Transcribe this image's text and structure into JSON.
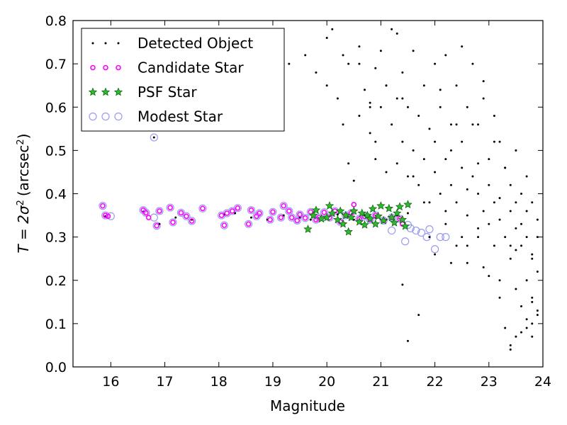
{
  "chart_data": {
    "type": "scatter",
    "xlabel": "Magnitude",
    "ylabel_main": "T = 2σ",
    "ylabel_sup": "2",
    "ylabel_unit": "(arcsec",
    "ylabel_unit_sup": "2",
    "ylabel_close": ")",
    "xlim": [
      15.3,
      24.0
    ],
    "ylim": [
      0.0,
      0.8
    ],
    "xticks": [
      "16",
      "17",
      "18",
      "19",
      "20",
      "21",
      "22",
      "23",
      "24"
    ],
    "yticks": [
      "0.0",
      "0.1",
      "0.2",
      "0.3",
      "0.4",
      "0.5",
      "0.6",
      "0.7",
      "0.8"
    ],
    "grid": false,
    "legend_position": "upper-left",
    "series": [
      {
        "name": "Detected Object",
        "marker": "dot",
        "color": "#000000",
        "x": [
          15.9,
          16.6,
          16.9,
          17.2,
          17.5,
          18.1,
          18.3,
          18.6,
          18.9,
          19.2,
          19.5,
          19.7,
          20.0,
          20.2,
          20.5,
          20.7,
          20.9,
          21.1,
          21.3,
          21.5,
          20.0,
          20.1,
          20.3,
          20.4,
          20.6,
          20.9,
          21.1,
          21.3,
          20.8,
          21.4,
          16.8,
          19.3,
          19.6,
          19.8,
          20.0,
          20.2,
          20.3,
          20.4,
          20.5,
          20.6,
          20.6,
          20.7,
          20.8,
          20.8,
          20.9,
          20.9,
          21.0,
          21.0,
          21.1,
          21.1,
          21.2,
          21.2,
          21.3,
          21.3,
          21.4,
          21.4,
          21.5,
          21.5,
          21.6,
          21.6,
          21.7,
          21.7,
          21.8,
          21.8,
          21.9,
          21.9,
          22.0,
          22.0,
          22.1,
          22.1,
          22.2,
          22.2,
          22.3,
          22.3,
          22.4,
          22.4,
          22.5,
          22.5,
          22.6,
          22.6,
          22.7,
          22.7,
          22.8,
          22.8,
          22.9,
          22.9,
          23.0,
          23.0,
          23.1,
          23.1,
          23.2,
          23.2,
          23.3,
          23.3,
          23.4,
          23.4,
          23.5,
          23.5,
          23.6,
          23.6,
          23.7,
          23.7,
          23.8,
          23.8,
          23.9,
          23.9,
          21.6,
          21.8,
          22.0,
          22.2,
          22.4,
          22.6,
          22.8,
          23.0,
          23.2,
          23.4,
          23.6,
          23.8,
          22.1,
          22.3,
          22.5,
          22.7,
          22.9,
          23.1,
          23.3,
          23.5,
          23.7,
          23.9,
          21.9,
          22.2,
          22.5,
          22.8,
          23.1,
          23.4,
          23.7,
          22.0,
          22.3,
          22.6,
          22.9,
          23.2,
          23.5,
          23.8,
          21.5,
          21.7,
          22.4,
          22.6,
          22.8,
          23.0,
          23.2,
          23.6,
          23.8,
          23.3,
          23.5,
          23.7,
          23.9,
          23.4,
          23.6,
          23.8,
          21.4,
          23.4,
          23.5,
          23.7,
          23.8,
          23.9
        ],
        "y": [
          0.348,
          0.358,
          0.33,
          0.345,
          0.34,
          0.352,
          0.355,
          0.345,
          0.34,
          0.35,
          0.345,
          0.34,
          0.345,
          0.352,
          0.34,
          0.35,
          0.345,
          0.34,
          0.35,
          0.355,
          0.76,
          0.78,
          0.72,
          0.7,
          0.74,
          0.69,
          0.65,
          0.77,
          0.6,
          0.62,
          0.53,
          0.7,
          0.72,
          0.68,
          0.65,
          0.62,
          0.56,
          0.47,
          0.43,
          0.58,
          0.7,
          0.64,
          0.54,
          0.61,
          0.48,
          0.52,
          0.6,
          0.73,
          0.45,
          0.65,
          0.56,
          0.78,
          0.47,
          0.62,
          0.52,
          0.68,
          0.44,
          0.6,
          0.5,
          0.73,
          0.42,
          0.58,
          0.48,
          0.65,
          0.38,
          0.55,
          0.45,
          0.7,
          0.4,
          0.6,
          0.48,
          0.72,
          0.42,
          0.56,
          0.38,
          0.65,
          0.46,
          0.52,
          0.35,
          0.6,
          0.44,
          0.7,
          0.4,
          0.56,
          0.36,
          0.62,
          0.42,
          0.48,
          0.38,
          0.58,
          0.34,
          0.52,
          0.3,
          0.46,
          0.36,
          0.42,
          0.32,
          0.5,
          0.28,
          0.4,
          0.3,
          0.44,
          0.26,
          0.38,
          0.22,
          0.34,
          0.44,
          0.38,
          0.52,
          0.36,
          0.56,
          0.41,
          0.47,
          0.33,
          0.39,
          0.28,
          0.33,
          0.25,
          0.64,
          0.5,
          0.74,
          0.56,
          0.66,
          0.52,
          0.46,
          0.38,
          0.36,
          0.3,
          0.3,
          0.33,
          0.3,
          0.32,
          0.28,
          0.25,
          0.2,
          0.26,
          0.24,
          0.28,
          0.23,
          0.2,
          0.18,
          0.16,
          0.06,
          0.12,
          0.28,
          0.24,
          0.3,
          0.21,
          0.16,
          0.14,
          0.1,
          0.09,
          0.07,
          0.11,
          0.13,
          0.05,
          0.08,
          0.15,
          0.19,
          0.04,
          0.27,
          0.09,
          0.07,
          0.12
        ],
        "size": 2
      },
      {
        "name": "Candidate Star",
        "marker": "circle-small",
        "color": "#ff00ff",
        "x": [
          15.85,
          15.9,
          15.95,
          16.6,
          16.65,
          16.7,
          16.85,
          16.9,
          17.1,
          17.15,
          17.3,
          17.4,
          17.5,
          17.7,
          18.05,
          18.1,
          18.15,
          18.25,
          18.35,
          18.55,
          18.6,
          18.7,
          18.75,
          18.95,
          19.0,
          19.15,
          19.2,
          19.3,
          19.35,
          19.45,
          19.5,
          19.6,
          19.7,
          19.8,
          19.85,
          19.95,
          20.05,
          20.15,
          20.25,
          20.35,
          20.45,
          20.5,
          20.6,
          20.7,
          20.8,
          20.9,
          21.05,
          21.2,
          21.35,
          21.4
        ],
        "y": [
          0.372,
          0.35,
          0.348,
          0.362,
          0.356,
          0.345,
          0.326,
          0.36,
          0.368,
          0.334,
          0.356,
          0.348,
          0.337,
          0.366,
          0.35,
          0.327,
          0.355,
          0.36,
          0.367,
          0.33,
          0.362,
          0.348,
          0.355,
          0.34,
          0.358,
          0.345,
          0.372,
          0.36,
          0.345,
          0.338,
          0.352,
          0.344,
          0.358,
          0.34,
          0.345,
          0.357,
          0.345,
          0.36,
          0.335,
          0.35,
          0.355,
          0.375,
          0.342,
          0.348,
          0.34,
          0.35,
          0.338,
          0.345,
          0.342,
          0.33
        ],
        "size": 4
      },
      {
        "name": "PSF Star",
        "marker": "star",
        "color": "#2db82d",
        "x": [
          19.65,
          19.75,
          19.8,
          19.9,
          20.0,
          20.05,
          20.1,
          20.2,
          20.25,
          20.3,
          20.35,
          20.4,
          20.45,
          20.5,
          20.6,
          20.65,
          20.7,
          20.75,
          20.8,
          20.85,
          20.9,
          20.95,
          21.0,
          21.05,
          21.15,
          21.2,
          21.25,
          21.3,
          21.35,
          21.4,
          21.45,
          21.5
        ],
        "y": [
          0.318,
          0.35,
          0.362,
          0.342,
          0.345,
          0.372,
          0.355,
          0.34,
          0.36,
          0.33,
          0.35,
          0.312,
          0.345,
          0.36,
          0.335,
          0.355,
          0.328,
          0.35,
          0.342,
          0.365,
          0.33,
          0.348,
          0.372,
          0.338,
          0.366,
          0.345,
          0.333,
          0.355,
          0.37,
          0.34,
          0.325,
          0.375
        ],
        "size": 7
      },
      {
        "name": "Modest Star",
        "marker": "ring",
        "color": "#9a9af0",
        "x": [
          15.85,
          15.9,
          16.0,
          16.6,
          16.65,
          16.8,
          16.85,
          16.9,
          17.1,
          17.15,
          17.3,
          17.4,
          17.5,
          17.7,
          18.05,
          18.1,
          18.15,
          18.25,
          18.35,
          18.55,
          18.6,
          18.7,
          18.75,
          18.95,
          19.0,
          19.15,
          19.2,
          19.3,
          19.35,
          19.45,
          19.5,
          19.6,
          19.7,
          19.8,
          19.85,
          19.95,
          20.05,
          20.15,
          20.25,
          20.35,
          20.45,
          20.6,
          20.7,
          20.8,
          20.9,
          21.05,
          21.2,
          21.35,
          21.45,
          21.5,
          21.65,
          21.75,
          21.85,
          21.9,
          22.0,
          22.1,
          22.2,
          16.8,
          21.2,
          21.55
        ],
        "y": [
          0.372,
          0.35,
          0.348,
          0.362,
          0.356,
          0.345,
          0.326,
          0.36,
          0.368,
          0.334,
          0.356,
          0.348,
          0.337,
          0.366,
          0.35,
          0.327,
          0.355,
          0.36,
          0.367,
          0.33,
          0.362,
          0.348,
          0.355,
          0.34,
          0.358,
          0.345,
          0.372,
          0.36,
          0.345,
          0.338,
          0.352,
          0.344,
          0.358,
          0.34,
          0.345,
          0.357,
          0.345,
          0.36,
          0.335,
          0.35,
          0.355,
          0.342,
          0.348,
          0.34,
          0.35,
          0.338,
          0.345,
          0.342,
          0.29,
          0.328,
          0.315,
          0.31,
          0.3,
          0.318,
          0.272,
          0.3,
          0.3,
          0.53,
          0.315,
          0.32
        ],
        "size": 5
      }
    ]
  }
}
